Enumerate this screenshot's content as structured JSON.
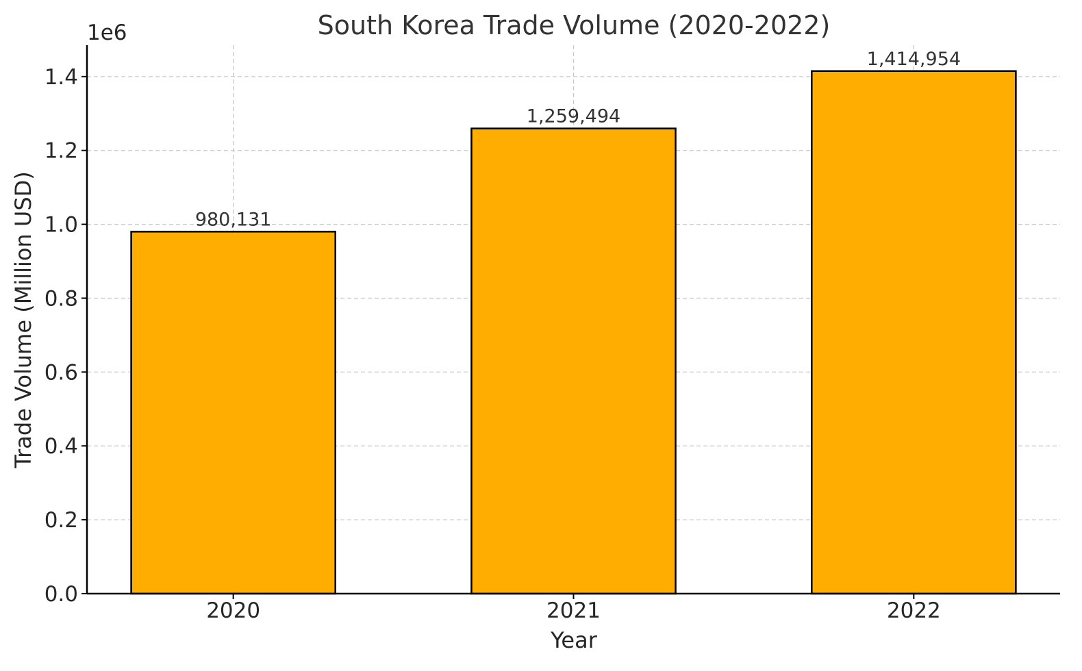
{
  "chart_data": {
    "type": "bar",
    "title": "South Korea Trade Volume (2020-2022)",
    "xlabel": "Year",
    "ylabel": "Trade Volume (Million USD)",
    "categories": [
      "2020",
      "2021",
      "2022"
    ],
    "values": [
      980131,
      1259494,
      1414954
    ],
    "value_labels": [
      "980,131",
      "1,259,494",
      "1,414,954"
    ],
    "y_ticks": [
      0,
      200000,
      400000,
      600000,
      800000,
      1000000,
      1200000,
      1400000
    ],
    "y_tick_labels": [
      "0.0",
      "0.2",
      "0.4",
      "0.6",
      "0.8",
      "1.0",
      "1.2",
      "1.4"
    ],
    "y_offset_label": "1e6",
    "ylim": [
      0,
      1485000
    ],
    "grid": true,
    "bar_color": "#FFAE00",
    "bar_edge_color": "#000000",
    "grid_color": "#c8c8c8"
  }
}
